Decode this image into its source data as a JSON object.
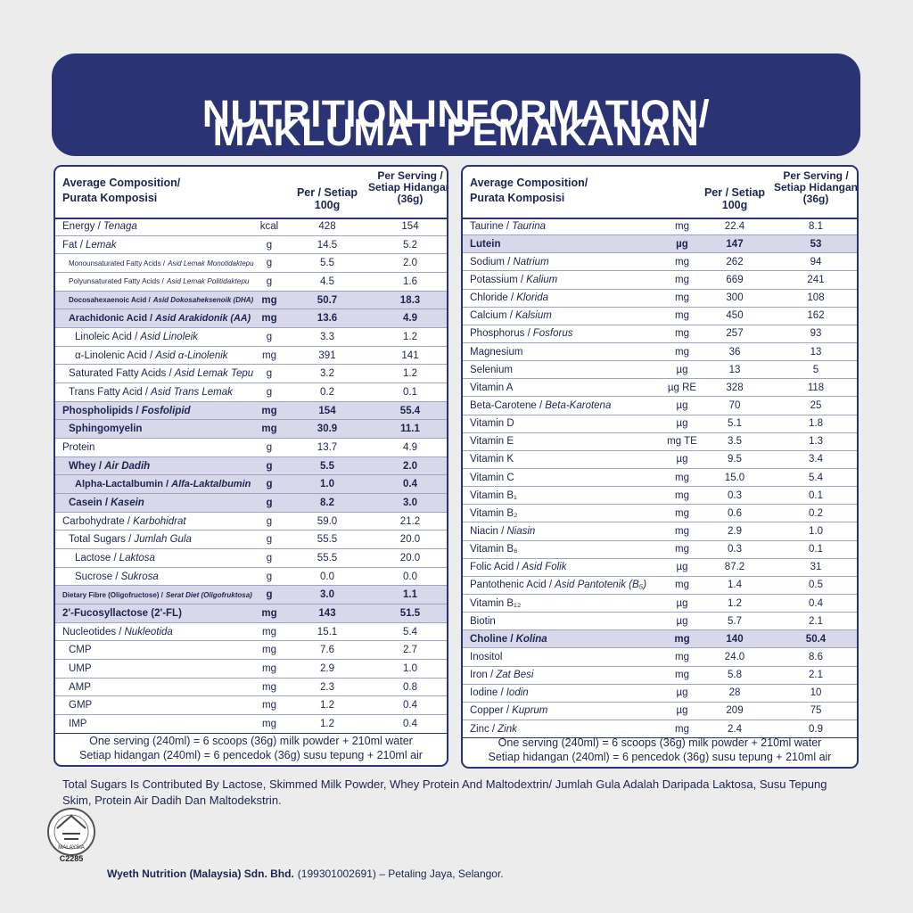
{
  "header": {
    "title_line1": "NUTRITION INFORMATION/",
    "title_line2": "MAKLUMAT PEMAKANAN"
  },
  "tables": [
    {
      "columns": {
        "composition": [
          "Average Composition/",
          "Purata Komposisi"
        ],
        "per_100g": "Per / Setiap 100g",
        "per_serving": [
          "Per Serving /",
          "Setiap Hidangan",
          "(36g)"
        ]
      },
      "rows": [
        {
          "name": "Energy /",
          "local": "Tenaga",
          "unit": "kcal",
          "per_100g": "428",
          "per_serving": "154",
          "indent": 0
        },
        {
          "name": "Fat /",
          "local": "Lemak",
          "unit": "g",
          "per_100g": "14.5",
          "per_serving": "5.2",
          "indent": 0
        },
        {
          "name": "Monounsaturated Fatty Acids /",
          "local": "Asid Lemak Monotidaktepu",
          "unit": "g",
          "per_100g": "5.5",
          "per_serving": "2.0",
          "indent": 1
        },
        {
          "name": "Polyunsaturated Fatty Acids /",
          "local": "Asid Lemak Politidaktepu",
          "unit": "g",
          "per_100g": "4.5",
          "per_serving": "1.6",
          "indent": 1
        },
        {
          "name": "Docosahexaenoic Acid /",
          "local": "Asid Dokosaheksenoik (DHA)",
          "unit": "mg",
          "per_100g": "50.7",
          "per_serving": "18.3",
          "indent": 1,
          "highlight": true
        },
        {
          "name": "Arachidonic Acid /",
          "local": "Asid Arakidonik (AA)",
          "unit": "mg",
          "per_100g": "13.6",
          "per_serving": "4.9",
          "indent": 1,
          "highlight": true
        },
        {
          "name": "Linoleic Acid /",
          "local": "Asid Linoleik",
          "unit": "g",
          "per_100g": "3.3",
          "per_serving": "1.2",
          "indent": 2
        },
        {
          "name": "α-Linolenic Acid /",
          "local": "Asid α-Linolenik",
          "unit": "mg",
          "per_100g": "391",
          "per_serving": "141",
          "indent": 2
        },
        {
          "name": "Saturated Fatty Acids /",
          "local": "Asid Lemak Tepu",
          "unit": "g",
          "per_100g": "3.2",
          "per_serving": "1.2",
          "indent": 1
        },
        {
          "name": "Trans Fatty Acid /",
          "local": "Asid Trans Lemak",
          "unit": "g",
          "per_100g": "0.2",
          "per_serving": "0.1",
          "indent": 1
        },
        {
          "name": "Phospholipids /",
          "local": "Fosfolipid",
          "unit": "mg",
          "per_100g": "154",
          "per_serving": "55.4",
          "indent": 0,
          "highlight": true
        },
        {
          "name": "Sphingomyelin",
          "unit": "mg",
          "per_100g": "30.9",
          "per_serving": "11.1",
          "indent": 1,
          "highlight": true
        },
        {
          "name": "Protein",
          "unit": "g",
          "per_100g": "13.7",
          "per_serving": "4.9",
          "indent": 0
        },
        {
          "name": "Whey /",
          "local": "Air Dadih",
          "unit": "g",
          "per_100g": "5.5",
          "per_serving": "2.0",
          "indent": 1,
          "highlight": true
        },
        {
          "name": "Alpha-Lactalbumin /",
          "local": "Alfa-Laktalbumin",
          "unit": "g",
          "per_100g": "1.0",
          "per_serving": "0.4",
          "indent": 2,
          "highlight": true
        },
        {
          "name": "Casein /",
          "local": "Kasein",
          "unit": "g",
          "per_100g": "8.2",
          "per_serving": "3.0",
          "indent": 1,
          "highlight": true
        },
        {
          "name": "Carbohydrate /",
          "local": "Karbohidrat",
          "unit": "g",
          "per_100g": "59.0",
          "per_serving": "21.2",
          "indent": 0
        },
        {
          "name": "Total Sugars /",
          "local": "Jumlah Gula",
          "unit": "g",
          "per_100g": "55.5",
          "per_serving": "20.0",
          "indent": 1
        },
        {
          "name": "Lactose /",
          "local": "Laktosa",
          "unit": "g",
          "per_100g": "55.5",
          "per_serving": "20.0",
          "indent": 2
        },
        {
          "name": "Sucrose /",
          "local": "Sukrosa",
          "unit": "g",
          "per_100g": "0.0",
          "per_serving": "0.0",
          "indent": 2
        },
        {
          "name": "Dietary Fibre (Oligofructose) /",
          "local": "Serat Diet (Oligofruktosa)",
          "unit": "g",
          "per_100g": "3.0",
          "per_serving": "1.1",
          "indent": 0,
          "highlight": true
        },
        {
          "name": "2'-Fucosyllactose (2'-FL)",
          "unit": "mg",
          "per_100g": "143",
          "per_serving": "51.5",
          "indent": 0,
          "highlight": true
        },
        {
          "name": "Nucleotides /",
          "local": "Nukleotida",
          "unit": "mg",
          "per_100g": "15.1",
          "per_serving": "5.4",
          "indent": 0
        },
        {
          "name": "CMP",
          "unit": "mg",
          "per_100g": "7.6",
          "per_serving": "2.7",
          "indent": 1
        },
        {
          "name": "UMP",
          "unit": "mg",
          "per_100g": "2.9",
          "per_serving": "1.0",
          "indent": 1
        },
        {
          "name": "AMP",
          "unit": "mg",
          "per_100g": "2.3",
          "per_serving": "0.8",
          "indent": 1
        },
        {
          "name": "GMP",
          "unit": "mg",
          "per_100g": "1.2",
          "per_serving": "0.4",
          "indent": 1
        },
        {
          "name": "IMP",
          "unit": "mg",
          "per_100g": "1.2",
          "per_serving": "0.4",
          "indent": 1
        }
      ],
      "footer": [
        "One serving (240ml) = 6 scoops (36g) milk powder + 210ml water",
        "Setiap hidangan (240ml) = 6 pencedok (36g) susu tepung + 210ml air"
      ]
    },
    {
      "columns": {
        "composition": [
          "Average Composition/",
          "Purata Komposisi"
        ],
        "per_100g": "Per / Setiap 100g",
        "per_serving": [
          "Per Serving /",
          "Setiap Hidangan",
          "(36g)"
        ]
      },
      "rows": [
        {
          "name": "Taurine /",
          "local": "Taurina",
          "unit": "mg",
          "per_100g": "22.4",
          "per_serving": "8.1",
          "indent": 0
        },
        {
          "name": "Lutein",
          "unit": "µg",
          "per_100g": "147",
          "per_serving": "53",
          "indent": 0,
          "highlight": true
        },
        {
          "name": "Sodium /",
          "local": "Natrium",
          "unit": "mg",
          "per_100g": "262",
          "per_serving": "94",
          "indent": 0
        },
        {
          "name": "Potassium /",
          "local": "Kalium",
          "unit": "mg",
          "per_100g": "669",
          "per_serving": "241",
          "indent": 0
        },
        {
          "name": "Chloride /",
          "local": "Klorida",
          "unit": "mg",
          "per_100g": "300",
          "per_serving": "108",
          "indent": 0
        },
        {
          "name": "Calcium /",
          "local": "Kalsium",
          "unit": "mg",
          "per_100g": "450",
          "per_serving": "162",
          "indent": 0
        },
        {
          "name": "Phosphorus /",
          "local": "Fosforus",
          "unit": "mg",
          "per_100g": "257",
          "per_serving": "93",
          "indent": 0
        },
        {
          "name": "Magnesium",
          "unit": "mg",
          "per_100g": "36",
          "per_serving": "13",
          "indent": 0
        },
        {
          "name": "Selenium",
          "unit": "µg",
          "per_100g": "13",
          "per_serving": "5",
          "indent": 0
        },
        {
          "name": "Vitamin A",
          "unit": "µg RE",
          "per_100g": "328",
          "per_serving": "118",
          "indent": 0
        },
        {
          "name": "Beta-Carotene /",
          "local": "Beta-Karotena",
          "unit": "µg",
          "per_100g": "70",
          "per_serving": "25",
          "indent": 0
        },
        {
          "name": "Vitamin D",
          "unit": "µg",
          "per_100g": "5.1",
          "per_serving": "1.8",
          "indent": 0
        },
        {
          "name": "Vitamin E",
          "unit": "mg TE",
          "per_100g": "3.5",
          "per_serving": "1.3",
          "indent": 0
        },
        {
          "name": "Vitamin K",
          "unit": "µg",
          "per_100g": "9.5",
          "per_serving": "3.4",
          "indent": 0
        },
        {
          "name": "Vitamin C",
          "unit": "mg",
          "per_100g": "15.0",
          "per_serving": "5.4",
          "indent": 0
        },
        {
          "name": "Vitamin B₁",
          "unit": "mg",
          "per_100g": "0.3",
          "per_serving": "0.1",
          "indent": 0
        },
        {
          "name": "Vitamin B₂",
          "unit": "mg",
          "per_100g": "0.6",
          "per_serving": "0.2",
          "indent": 0
        },
        {
          "name": "Niacin /",
          "local": "Niasin",
          "unit": "mg",
          "per_100g": "2.9",
          "per_serving": "1.0",
          "indent": 0
        },
        {
          "name": "Vitamin B₆",
          "unit": "mg",
          "per_100g": "0.3",
          "per_serving": "0.1",
          "indent": 0
        },
        {
          "name": "Folic Acid /",
          "local": "Asid Folik",
          "unit": "µg",
          "per_100g": "87.2",
          "per_serving": "31",
          "indent": 0
        },
        {
          "name": "Pantothenic Acid /",
          "local": "Asid Pantotenik (B₅)",
          "unit": "mg",
          "per_100g": "1.4",
          "per_serving": "0.5",
          "indent": 0
        },
        {
          "name": "Vitamin B₁₂",
          "unit": "µg",
          "per_100g": "1.2",
          "per_serving": "0.4",
          "indent": 0
        },
        {
          "name": "Biotin",
          "unit": "µg",
          "per_100g": "5.7",
          "per_serving": "2.1",
          "indent": 0
        },
        {
          "name": "Choline /",
          "local": "Kolina",
          "unit": "mg",
          "per_100g": "140",
          "per_serving": "50.4",
          "indent": 0,
          "highlight": true
        },
        {
          "name": "Inositol",
          "unit": "mg",
          "per_100g": "24.0",
          "per_serving": "8.6",
          "indent": 0
        },
        {
          "name": "Iron /",
          "local": "Zat Besi",
          "unit": "mg",
          "per_100g": "5.8",
          "per_serving": "2.1",
          "indent": 0
        },
        {
          "name": "Iodine /",
          "local": "Iodin",
          "unit": "µg",
          "per_100g": "28",
          "per_serving": "10",
          "indent": 0
        },
        {
          "name": "Copper /",
          "local": "Kuprum",
          "unit": "µg",
          "per_100g": "209",
          "per_serving": "75",
          "indent": 0
        },
        {
          "name": "Zinc /",
          "local": "Zink",
          "unit": "mg",
          "per_100g": "2.4",
          "per_serving": "0.9",
          "indent": 0
        }
      ],
      "footer": [
        "One serving (240ml) = 6 scoops (36g) milk powder + 210ml water",
        "Setiap hidangan (240ml) = 6 pencedok (36g) susu tepung + 210ml air"
      ]
    }
  ],
  "note": "Total Sugars Is Contributed By Lactose, Skimmed Milk Powder, Whey Protein And Maltodextrin/ Jumlah Gula Adalah Daripada Laktosa, Susu Tepung Skim, Protein Air Dadih Dan Maltodekstrin.",
  "logo": {
    "text": "MALAYSIA",
    "code": "C2285"
  },
  "company": {
    "name": "Wyeth Nutrition (Malaysia) Sdn. Bhd.",
    "details": "(199301002691) – Petaling Jaya, Selangor."
  }
}
